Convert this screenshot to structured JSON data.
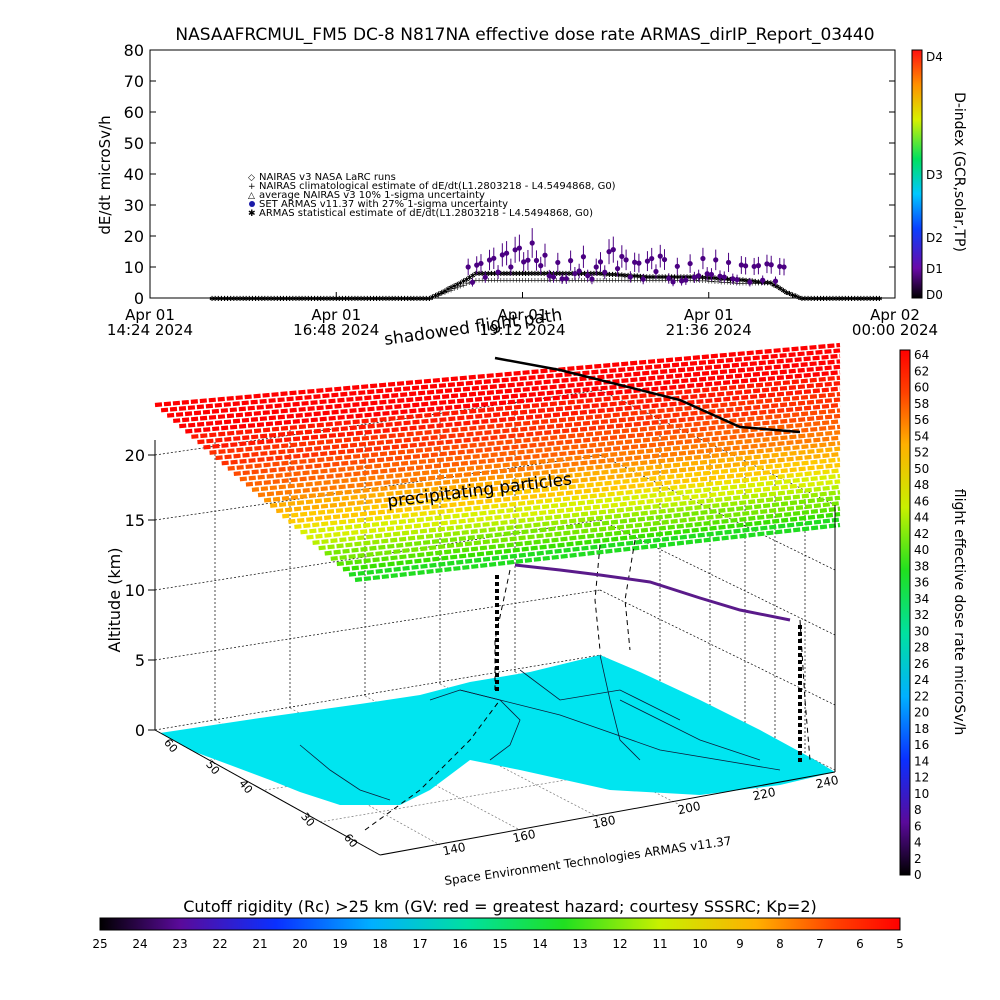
{
  "title": "NASAAFRCMUL_FM5 DC-8    N817NA effective dose rate ARMAS_dirIP_Report_03440",
  "top_chart": {
    "ylabel": "dE/dt microSv/h",
    "yticks": [
      "0",
      "10",
      "20",
      "30",
      "40",
      "50",
      "60",
      "70",
      "80"
    ],
    "xticks": [
      {
        "line1": "Apr 01",
        "line2": "14:24 2024"
      },
      {
        "line1": "Apr 01",
        "line2": "16:48 2024"
      },
      {
        "line1": "Apr 01",
        "line2": "19:12 2024"
      },
      {
        "line1": "Apr 01",
        "line2": "21:36 2024"
      },
      {
        "line1": "Apr 02",
        "line2": "00:00 2024"
      }
    ],
    "legend": [
      "NAIRAS v3 NASA LaRC runs",
      "NAIRAS climatological estimate of dE/dt(L1.2803218 - L4.5494868, G0)",
      "average NAIRAS v3 10% 1-sigma uncertainty",
      "SET ARMAS v11.37 with 27% 1-sigma uncertainty",
      "ARMAS statistical estimate of dE/dt(L1.2803218 - L4.5494868, G0)"
    ],
    "dindex_label": "D-index (GCR,solar,TP)",
    "dindex_ticks": [
      "D0",
      "D1",
      "D2",
      "D3",
      "D4"
    ]
  },
  "chart_data": [
    {
      "type": "scatter",
      "title": "NASAAFRCMUL_FM5 DC-8    N817NA effective dose rate ARMAS_dirIP_Report_03440",
      "xlabel": "",
      "ylabel": "dE/dt microSv/h",
      "xlim_hours": [
        14.4,
        24.0
      ],
      "ylim": [
        0,
        80
      ],
      "series": [
        {
          "name": "SET ARMAS v11.37 with 27% 1-sigma uncertainty",
          "x_hours": [
            18.55,
            18.75,
            18.95,
            19.15,
            19.35,
            19.55,
            19.75,
            19.95,
            20.15,
            20.35,
            20.55,
            20.75,
            20.95,
            21.15,
            21.35,
            21.55,
            21.75,
            21.95,
            22.15,
            22.35,
            22.55
          ],
          "values": [
            8,
            10,
            12,
            14,
            16,
            10,
            9,
            12,
            8,
            14,
            10,
            9,
            12,
            8,
            9,
            11,
            10,
            9,
            8,
            9,
            8
          ]
        },
        {
          "name": "ARMAS statistical estimate of dE/dt(L1.2803218 - L4.5494868, G0)",
          "x_hours": [
            15.2,
            16.0,
            16.8,
            17.6,
            18.0,
            18.4,
            18.6,
            19.0,
            19.6,
            20.2,
            20.8,
            21.4,
            22.0,
            22.4,
            22.6,
            22.8,
            23.2,
            23.8
          ],
          "values": [
            0,
            0,
            0,
            0,
            0,
            5,
            8,
            8,
            8,
            8,
            7,
            7,
            6,
            5,
            2,
            0,
            0,
            0
          ]
        },
        {
          "name": "NAIRAS climatological estimate of dE/dt(L1.2803218 - L4.5494868, G0)",
          "x_hours": [
            15.2,
            16.0,
            16.8,
            17.6,
            18.0,
            18.3,
            18.6,
            19.0,
            19.6,
            20.2,
            20.8,
            21.4,
            22.0,
            22.4,
            22.6,
            22.8,
            23.2,
            23.8
          ],
          "values": [
            0,
            0,
            0,
            0,
            0,
            3,
            6,
            6,
            6,
            6,
            6,
            6,
            5,
            5,
            2,
            0,
            0,
            0
          ]
        }
      ]
    },
    {
      "type": "scatter",
      "title": "",
      "xlabel": "",
      "ylabel": "Altitude (km)",
      "zticks": [
        "0",
        "5",
        "10",
        "15",
        "20"
      ],
      "longitude_ticks": [
        "140",
        "160",
        "180",
        "200",
        "220",
        "240"
      ],
      "latitude_ticks": [
        "30",
        "40",
        "50",
        "60"
      ],
      "series": [
        {
          "name": "",
          "altitude_km": [
            10.5,
            10.5,
            10.3,
            10.2,
            10.0,
            9.8,
            9.5
          ]
        }
      ]
    }
  ],
  "bottom_chart": {
    "annotation_shadow": "shadowed flight path",
    "annotation_precip": "precipitating particles",
    "zlabel": "Altitude (km)",
    "zticks": [
      "0",
      "5",
      "10",
      "15",
      "20"
    ],
    "lat_ticks": [
      "60",
      "50",
      "40",
      "30",
      "60"
    ],
    "lon_ticks": [
      "140",
      "160",
      "180",
      "200",
      "220",
      "240"
    ],
    "credit": "Space Environment Technologies ARMAS v11.37",
    "right_colorbar_label": "flight effective dose rate microSv/h",
    "right_colorbar_ticks": [
      "0",
      "2",
      "4",
      "6",
      "8",
      "10",
      "12",
      "14",
      "16",
      "18",
      "20",
      "22",
      "24",
      "26",
      "28",
      "30",
      "32",
      "34",
      "36",
      "38",
      "40",
      "42",
      "44",
      "46",
      "48",
      "50",
      "52",
      "54",
      "56",
      "58",
      "60",
      "62",
      "64"
    ],
    "bottom_colorbar_title": "Cutoff rigidity (Rc) >25 km (GV: red = greatest hazard; courtesy SSSRC; Kp=2)",
    "bottom_colorbar_ticks": [
      "25",
      "24",
      "23",
      "22",
      "21",
      "20",
      "19",
      "18",
      "17",
      "16",
      "15",
      "14",
      "13",
      "12",
      "11",
      "10",
      "9",
      "8",
      "7",
      "6",
      "5"
    ]
  },
  "colors": {
    "armas_series": "#4b0082",
    "armas_blue": "#1a1aa8",
    "map_water": "#00e5f0",
    "land_lines": "#000000"
  }
}
